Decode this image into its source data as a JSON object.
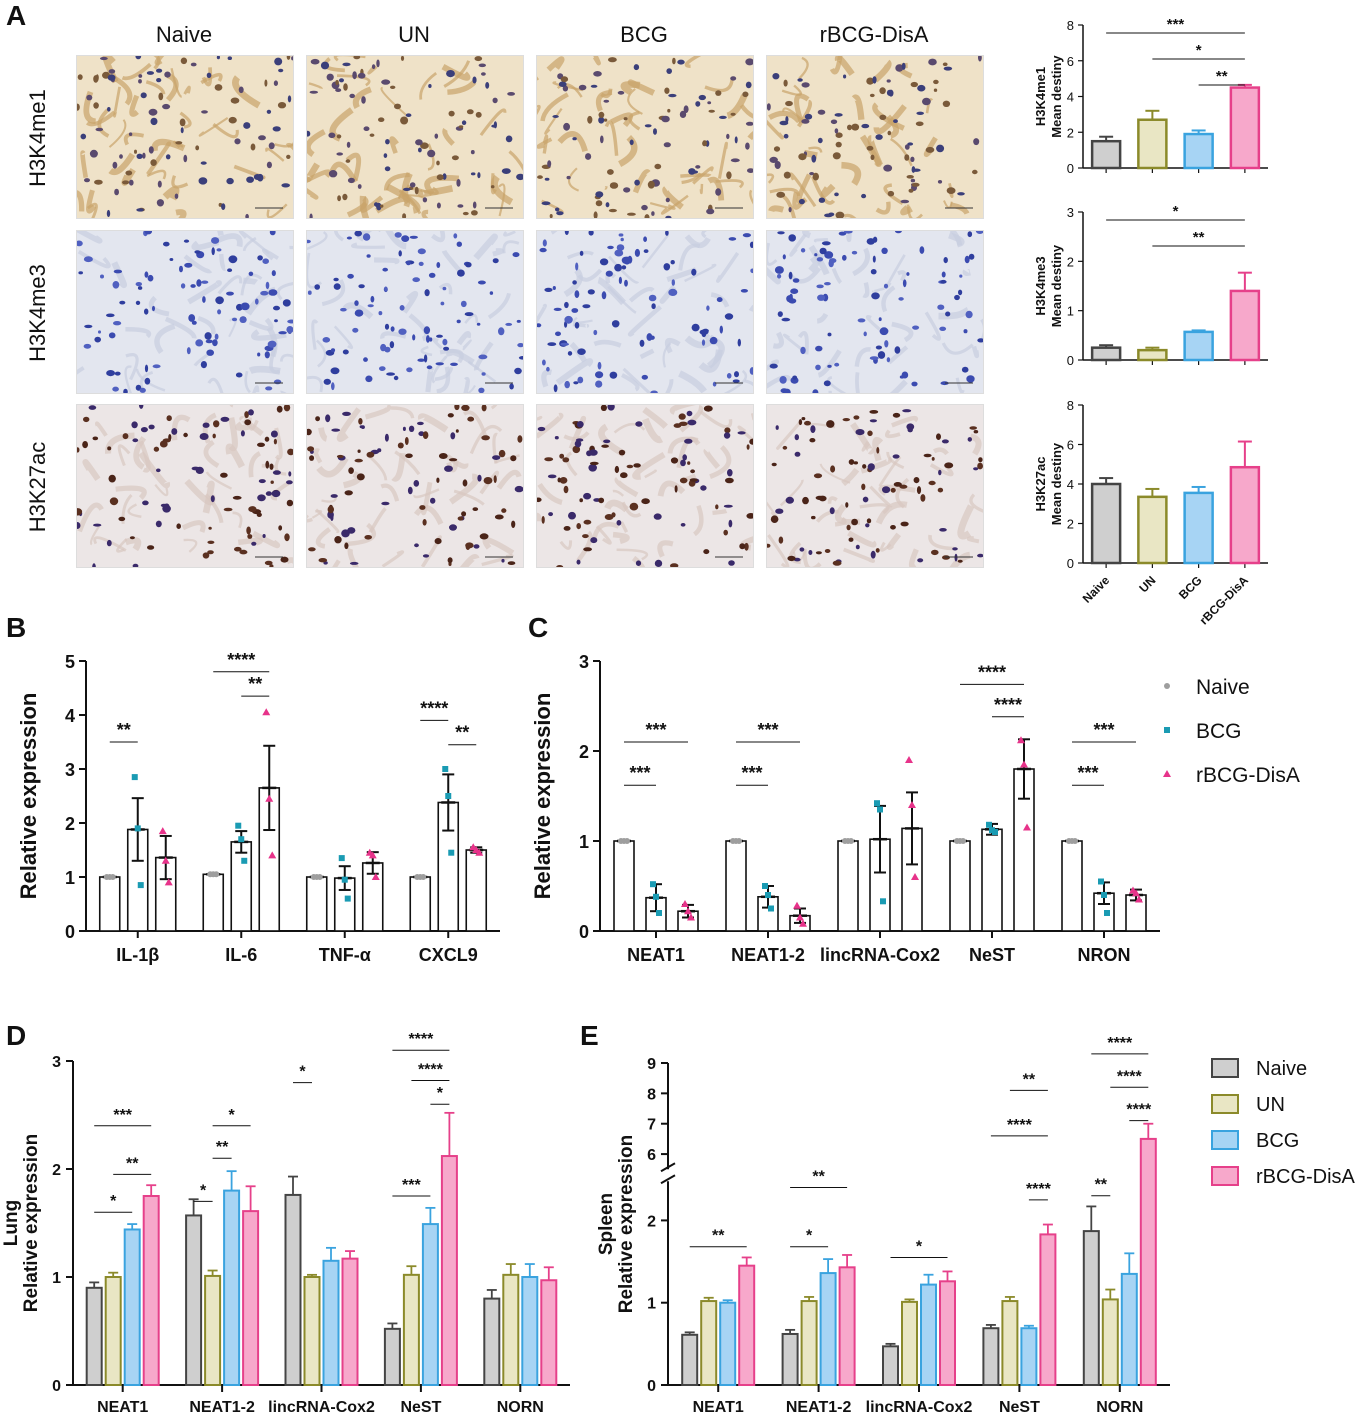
{
  "panel_letters": {
    "A": "A",
    "B": "B",
    "C": "C",
    "D": "D",
    "E": "E"
  },
  "panelA": {
    "groups": [
      "Naive",
      "UN",
      "BCG",
      "rBCG-DisA"
    ],
    "marks": [
      "H3K4me1",
      "H3K4me3",
      "H3K27ac"
    ]
  },
  "colors": {
    "Naive": "#cfcfcf",
    "UN": "#e9e6c4",
    "BCG": "#a7d4f4",
    "rBCG-DisA": "#f7a8cb",
    "Naive_edge": "#444444",
    "UN_edge": "#8b8a2a",
    "BCG_edge": "#3aa3df",
    "rBCG_edge": "#e6408a",
    "dot_naive": "#9e9e9e",
    "dot_bcg": "#1a9bb3",
    "dot_rbcg": "#e7338a"
  },
  "chart_data": [
    {
      "id": "A1",
      "type": "bar",
      "categories": [
        "Naive",
        "UN",
        "BCG",
        "rBCG-DisA"
      ],
      "values": [
        1.5,
        2.7,
        1.9,
        4.5
      ],
      "errors": [
        0.25,
        0.5,
        0.2,
        0.15
      ],
      "ylabel": [
        "H3K4me1",
        "Mean destiny"
      ],
      "ylim": [
        0,
        8
      ],
      "yticks": [
        0,
        2,
        4,
        6,
        8
      ],
      "sig": [
        {
          "a": 0,
          "b": 3,
          "label": "***"
        },
        {
          "a": 1,
          "b": 3,
          "label": "*"
        },
        {
          "a": 2,
          "b": 3,
          "label": "**"
        }
      ]
    },
    {
      "id": "A2",
      "type": "bar",
      "categories": [
        "Naive",
        "UN",
        "BCG",
        "rBCG-DisA"
      ],
      "values": [
        0.25,
        0.2,
        0.57,
        1.4
      ],
      "errors": [
        0.05,
        0.05,
        0.03,
        0.37
      ],
      "ylabel": [
        "H3K4me3",
        "Mean destiny"
      ],
      "ylim": [
        0,
        3
      ],
      "yticks": [
        0,
        1,
        2,
        3
      ],
      "sig": [
        {
          "a": 0,
          "b": 3,
          "label": "*"
        },
        {
          "a": 1,
          "b": 3,
          "label": "**"
        }
      ]
    },
    {
      "id": "A3",
      "type": "bar",
      "categories": [
        "Naive",
        "UN",
        "BCG",
        "rBCG-DisA"
      ],
      "values": [
        4.0,
        3.35,
        3.55,
        4.85
      ],
      "errors": [
        0.3,
        0.4,
        0.3,
        1.3
      ],
      "ylabel": [
        "H3K27ac",
        "Mean destiny"
      ],
      "ylim": [
        0,
        8
      ],
      "yticks": [
        0,
        2,
        4,
        6,
        8
      ],
      "sig": []
    },
    {
      "id": "B",
      "type": "bar",
      "categories": [
        "IL-1β",
        "IL-6",
        "TNF-α",
        "CXCL9"
      ],
      "series": [
        {
          "name": "Naive",
          "values": [
            1.0,
            1.05,
            1.0,
            1.0
          ],
          "errors": [
            0,
            0,
            0,
            0
          ],
          "points": [
            [
              1,
              1,
              1
            ],
            [
              1.05,
              1.05,
              1.05
            ],
            [
              1,
              1,
              1
            ],
            [
              1,
              1,
              1
            ]
          ]
        },
        {
          "name": "BCG",
          "values": [
            1.88,
            1.65,
            0.98,
            2.38
          ],
          "errors": [
            0.58,
            0.2,
            0.22,
            0.52
          ],
          "points": [
            [
              2.85,
              1.9,
              0.85
            ],
            [
              1.95,
              1.7,
              1.3
            ],
            [
              1.35,
              0.95,
              0.6
            ],
            [
              3.0,
              2.5,
              1.45
            ]
          ]
        },
        {
          "name": "rBCG-DisA",
          "values": [
            1.36,
            2.65,
            1.26,
            1.5
          ],
          "errors": [
            0.4,
            0.78,
            0.2,
            0.05
          ],
          "points": [
            [
              1.85,
              1.3,
              0.9
            ],
            [
              4.05,
              2.45,
              1.4
            ],
            [
              1.45,
              1.4,
              1.0
            ],
            [
              1.55,
              1.5,
              1.45
            ]
          ]
        }
      ],
      "ylabel": "Relative expression",
      "ylim": [
        0,
        5
      ],
      "yticks": [
        0,
        1,
        2,
        3,
        4,
        5
      ],
      "sig": [
        {
          "c": 0,
          "a": 0,
          "b": 1,
          "label": "**",
          "y": 3.5
        },
        {
          "c": 1,
          "a": 0,
          "b": 2,
          "label": "****",
          "y": 4.8
        },
        {
          "c": 1,
          "a": 1,
          "b": 2,
          "label": "**",
          "y": 4.35
        },
        {
          "c": 3,
          "a": 0,
          "b": 1,
          "label": "****",
          "y": 3.9
        },
        {
          "c": 3,
          "a": 1,
          "b": 2,
          "label": "**",
          "y": 3.45
        }
      ]
    },
    {
      "id": "C",
      "type": "bar",
      "categories": [
        "NEAT1",
        "NEAT1-2",
        "lincRNA-Cox2",
        "NeST",
        "NRON"
      ],
      "series": [
        {
          "name": "Naive",
          "values": [
            1.0,
            1.0,
            1.0,
            1.0,
            1.0
          ],
          "errors": [
            0,
            0,
            0,
            0,
            0
          ],
          "points": [
            [
              1,
              1,
              1
            ],
            [
              1,
              1,
              1
            ],
            [
              1,
              1,
              1
            ],
            [
              1,
              1,
              1
            ],
            [
              1,
              1,
              1
            ]
          ]
        },
        {
          "name": "BCG",
          "values": [
            0.37,
            0.38,
            1.02,
            1.13,
            0.42
          ],
          "errors": [
            0.15,
            0.12,
            0.37,
            0.06,
            0.12
          ],
          "points": [
            [
              0.52,
              0.38,
              0.2
            ],
            [
              0.5,
              0.4,
              0.25
            ],
            [
              1.42,
              1.35,
              0.33
            ],
            [
              1.18,
              1.12,
              1.1
            ],
            [
              0.55,
              0.4,
              0.2
            ]
          ]
        },
        {
          "name": "rBCG-DisA",
          "values": [
            0.22,
            0.17,
            1.14,
            1.8,
            0.4
          ],
          "errors": [
            0.07,
            0.08,
            0.4,
            0.33,
            0.06
          ],
          "points": [
            [
              0.3,
              0.22,
              0.15
            ],
            [
              0.28,
              0.15,
              0.08
            ],
            [
              1.9,
              1.4,
              0.6
            ],
            [
              2.12,
              1.85,
              1.15
            ],
            [
              0.45,
              0.42,
              0.35
            ]
          ]
        }
      ],
      "ylabel": "Relative expression",
      "ylim": [
        0,
        3
      ],
      "yticks": [
        0,
        1,
        2,
        3
      ],
      "legend": [
        "Naive",
        "BCG",
        "rBCG-DisA"
      ],
      "sig": [
        {
          "c": 0,
          "a": 0,
          "b": 1,
          "label": "***",
          "y": 1.62
        },
        {
          "c": 0,
          "a": 0,
          "b": 2,
          "label": "***",
          "y": 2.1
        },
        {
          "c": 1,
          "a": 0,
          "b": 1,
          "label": "***",
          "y": 1.62
        },
        {
          "c": 1,
          "a": 0,
          "b": 2,
          "label": "***",
          "y": 2.1
        },
        {
          "c": 3,
          "a": 0,
          "b": 2,
          "label": "****",
          "y": 2.74
        },
        {
          "c": 3,
          "a": 1,
          "b": 2,
          "label": "****",
          "y": 2.38
        },
        {
          "c": 4,
          "a": 0,
          "b": 1,
          "label": "***",
          "y": 1.62
        },
        {
          "c": 4,
          "a": 0,
          "b": 2,
          "label": "***",
          "y": 2.1
        }
      ]
    },
    {
      "id": "D",
      "type": "bar",
      "categories": [
        "NEAT1",
        "NEAT1-2",
        "lincRNA-Cox2",
        "NeST",
        "NORN"
      ],
      "series": [
        {
          "name": "Naive",
          "values": [
            0.9,
            1.57,
            1.76,
            0.52,
            0.8
          ],
          "errors": [
            0.05,
            0.15,
            0.17,
            0.05,
            0.08
          ]
        },
        {
          "name": "UN",
          "values": [
            1.0,
            1.01,
            1.0,
            1.02,
            1.02
          ],
          "errors": [
            0.04,
            0.05,
            0.02,
            0.08,
            0.1
          ]
        },
        {
          "name": "BCG",
          "values": [
            1.44,
            1.8,
            1.15,
            1.49,
            1.0
          ],
          "errors": [
            0.05,
            0.18,
            0.12,
            0.15,
            0.12
          ]
        },
        {
          "name": "rBCG-DisA",
          "values": [
            1.75,
            1.61,
            1.17,
            2.12,
            0.97
          ],
          "errors": [
            0.1,
            0.23,
            0.07,
            0.4,
            0.12
          ]
        }
      ],
      "ylabel": [
        "Lung",
        "Relative expression"
      ],
      "ylim": [
        0,
        3
      ],
      "yticks": [
        0,
        1,
        2,
        3
      ],
      "sig": [
        {
          "c": 0,
          "a": 0,
          "b": 2,
          "label": "*",
          "y": 1.6
        },
        {
          "c": 0,
          "a": 1,
          "b": 3,
          "label": "**",
          "y": 1.95
        },
        {
          "c": 0,
          "a": 0,
          "b": 3,
          "label": "***",
          "y": 2.4
        },
        {
          "c": 1,
          "a": 0,
          "b": 1,
          "label": "*",
          "y": 1.7
        },
        {
          "c": 1,
          "a": 1,
          "b": 2,
          "label": "**",
          "y": 2.1
        },
        {
          "c": 1,
          "a": 1,
          "b": 3,
          "label": "*",
          "y": 2.4
        },
        {
          "c": 2,
          "a": 0,
          "b": 1,
          "label": "*",
          "y": 2.8
        },
        {
          "c": 3,
          "a": 0,
          "b": 2,
          "label": "***",
          "y": 1.75
        },
        {
          "c": 3,
          "a": 2,
          "b": 3,
          "label": "*",
          "y": 2.6
        },
        {
          "c": 3,
          "a": 1,
          "b": 3,
          "label": "****",
          "y": 2.82
        },
        {
          "c": 3,
          "a": 0,
          "b": 3,
          "label": "****",
          "y": 3.1
        }
      ]
    },
    {
      "id": "E",
      "type": "bar",
      "categories": [
        "NEAT1",
        "NEAT1-2",
        "lincRNA-Cox2",
        "NeST",
        "NORN"
      ],
      "series": [
        {
          "name": "Naive",
          "values": [
            0.61,
            0.62,
            0.47,
            0.69,
            1.87
          ],
          "errors": [
            0.03,
            0.05,
            0.03,
            0.04,
            0.3
          ]
        },
        {
          "name": "UN",
          "values": [
            1.02,
            1.02,
            1.01,
            1.02,
            1.04
          ],
          "errors": [
            0.04,
            0.05,
            0.03,
            0.05,
            0.12
          ]
        },
        {
          "name": "BCG",
          "values": [
            1.0,
            1.36,
            1.22,
            0.69,
            1.35
          ],
          "errors": [
            0.03,
            0.17,
            0.12,
            0.03,
            0.25
          ]
        },
        {
          "name": "rBCG-DisA",
          "values": [
            1.45,
            1.43,
            1.26,
            1.83,
            6.5
          ],
          "errors": [
            0.1,
            0.15,
            0.12,
            0.12,
            0.5
          ]
        }
      ],
      "ylabel": [
        "Spleen",
        "Relative expression"
      ],
      "ylim": [
        0,
        9
      ],
      "yticks": [
        0,
        1,
        2,
        6,
        7,
        8,
        9
      ],
      "axis_break": [
        2.5,
        5.5
      ],
      "legend": [
        "Naive",
        "UN",
        "BCG",
        "rBCG-DisA"
      ],
      "sig": [
        {
          "c": 0,
          "a": 0,
          "b": 3,
          "label": "**",
          "y": 1.68
        },
        {
          "c": 1,
          "a": 0,
          "b": 2,
          "label": "*",
          "y": 1.68
        },
        {
          "c": 1,
          "a": 0,
          "b": 3,
          "label": "**",
          "y": 2.4
        },
        {
          "c": 2,
          "a": 0,
          "b": 3,
          "label": "*",
          "y": 1.55
        },
        {
          "c": 3,
          "a": 2,
          "b": 3,
          "label": "****",
          "y": 2.25
        },
        {
          "c": 3,
          "a": 0,
          "b": 3,
          "label": "****",
          "y": 6.6
        },
        {
          "c": 3,
          "a": 1,
          "b": 3,
          "label": "**",
          "y": 8.1
        },
        {
          "c": 4,
          "a": 0,
          "b": 1,
          "label": "**",
          "y": 2.3
        },
        {
          "c": 4,
          "a": 2,
          "b": 3,
          "label": "****",
          "y": 7.1
        },
        {
          "c": 4,
          "a": 1,
          "b": 3,
          "label": "****",
          "y": 8.2
        },
        {
          "c": 4,
          "a": 0,
          "b": 3,
          "label": "****",
          "y": 9.3
        }
      ]
    }
  ]
}
